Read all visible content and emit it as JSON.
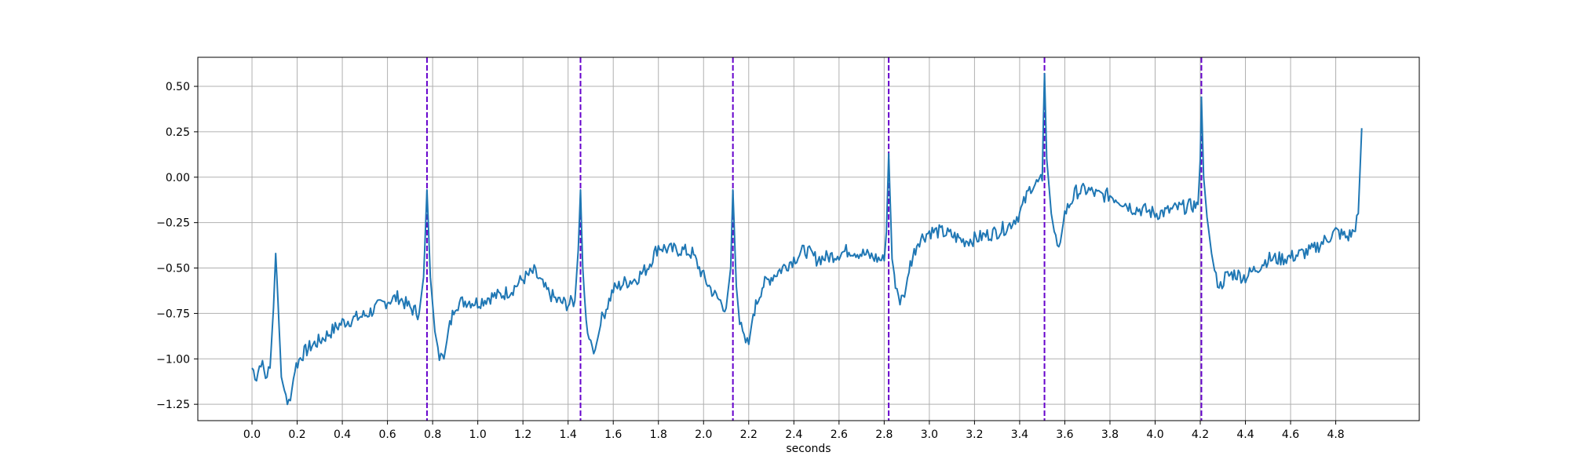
{
  "chart_data": {
    "type": "line",
    "title": "",
    "xlabel": "seconds",
    "ylabel": "",
    "xlim": [
      -0.24,
      5.17
    ],
    "ylim": [
      -1.34,
      0.66
    ],
    "xticks": [
      0.0,
      0.2,
      0.4,
      0.6,
      0.8,
      1.0,
      1.2,
      1.4,
      1.6,
      1.8,
      2.0,
      2.2,
      2.4,
      2.6,
      2.8,
      3.0,
      3.2,
      3.4,
      3.6,
      3.8,
      4.0,
      4.2,
      4.4,
      4.6,
      4.8
    ],
    "xtick_labels": [
      "0.0",
      "0.2",
      "0.4",
      "0.6",
      "0.8",
      "1.0",
      "1.2",
      "1.4",
      "1.6",
      "1.8",
      "2.0",
      "2.2",
      "2.4",
      "2.6",
      "2.8",
      "3.0",
      "3.2",
      "3.4",
      "3.6",
      "3.8",
      "4.0",
      "4.2",
      "4.4",
      "4.6",
      "4.8"
    ],
    "yticks": [
      -1.25,
      -1.0,
      -0.75,
      -0.5,
      -0.25,
      0.0,
      0.25,
      0.5
    ],
    "ytick_labels": [
      "−1.25",
      "−1.00",
      "−0.75",
      "−0.50",
      "−0.25",
      "0.00",
      "0.25",
      "0.50"
    ],
    "grid": true,
    "signal": {
      "color": "#1f77b4",
      "anchors": [
        [
          0.0,
          -1.05
        ],
        [
          0.02,
          -1.1
        ],
        [
          0.04,
          -1.01
        ],
        [
          0.06,
          -1.1
        ],
        [
          0.08,
          -1.05
        ],
        [
          0.095,
          -0.72
        ],
        [
          0.105,
          -0.42
        ],
        [
          0.115,
          -0.68
        ],
        [
          0.13,
          -1.1
        ],
        [
          0.15,
          -1.21
        ],
        [
          0.17,
          -1.23
        ],
        [
          0.19,
          -1.05
        ],
        [
          0.22,
          -0.98
        ],
        [
          0.26,
          -0.93
        ],
        [
          0.3,
          -0.9
        ],
        [
          0.35,
          -0.85
        ],
        [
          0.4,
          -0.8
        ],
        [
          0.45,
          -0.78
        ],
        [
          0.5,
          -0.76
        ],
        [
          0.55,
          -0.72
        ],
        [
          0.6,
          -0.68
        ],
        [
          0.65,
          -0.66
        ],
        [
          0.7,
          -0.72
        ],
        [
          0.74,
          -0.75
        ],
        [
          0.76,
          -0.55
        ],
        [
          0.775,
          -0.07
        ],
        [
          0.79,
          -0.55
        ],
        [
          0.81,
          -0.85
        ],
        [
          0.83,
          -0.98
        ],
        [
          0.85,
          -1.0
        ],
        [
          0.87,
          -0.85
        ],
        [
          0.9,
          -0.7
        ],
        [
          0.95,
          -0.68
        ],
        [
          1.0,
          -0.69
        ],
        [
          1.05,
          -0.66
        ],
        [
          1.1,
          -0.65
        ],
        [
          1.15,
          -0.62
        ],
        [
          1.2,
          -0.56
        ],
        [
          1.25,
          -0.52
        ],
        [
          1.3,
          -0.62
        ],
        [
          1.35,
          -0.68
        ],
        [
          1.4,
          -0.7
        ],
        [
          1.43,
          -0.68
        ],
        [
          1.445,
          -0.4
        ],
        [
          1.455,
          -0.07
        ],
        [
          1.465,
          -0.5
        ],
        [
          1.48,
          -0.8
        ],
        [
          1.5,
          -0.9
        ],
        [
          1.52,
          -0.95
        ],
        [
          1.55,
          -0.78
        ],
        [
          1.6,
          -0.62
        ],
        [
          1.65,
          -0.58
        ],
        [
          1.7,
          -0.56
        ],
        [
          1.75,
          -0.5
        ],
        [
          1.8,
          -0.38
        ],
        [
          1.85,
          -0.4
        ],
        [
          1.9,
          -0.4
        ],
        [
          1.95,
          -0.42
        ],
        [
          2.0,
          -0.55
        ],
        [
          2.05,
          -0.65
        ],
        [
          2.1,
          -0.72
        ],
        [
          2.12,
          -0.5
        ],
        [
          2.13,
          -0.07
        ],
        [
          2.145,
          -0.6
        ],
        [
          2.16,
          -0.8
        ],
        [
          2.18,
          -0.9
        ],
        [
          2.2,
          -0.92
        ],
        [
          2.22,
          -0.75
        ],
        [
          2.26,
          -0.6
        ],
        [
          2.3,
          -0.55
        ],
        [
          2.35,
          -0.5
        ],
        [
          2.4,
          -0.45
        ],
        [
          2.45,
          -0.4
        ],
        [
          2.5,
          -0.45
        ],
        [
          2.55,
          -0.44
        ],
        [
          2.6,
          -0.42
        ],
        [
          2.65,
          -0.4
        ],
        [
          2.7,
          -0.42
        ],
        [
          2.75,
          -0.44
        ],
        [
          2.8,
          -0.46
        ],
        [
          2.81,
          -0.3
        ],
        [
          2.82,
          0.13
        ],
        [
          2.835,
          -0.45
        ],
        [
          2.85,
          -0.58
        ],
        [
          2.87,
          -0.68
        ],
        [
          2.89,
          -0.66
        ],
        [
          2.91,
          -0.5
        ],
        [
          2.95,
          -0.35
        ],
        [
          3.0,
          -0.3
        ],
        [
          3.05,
          -0.3
        ],
        [
          3.1,
          -0.32
        ],
        [
          3.15,
          -0.35
        ],
        [
          3.2,
          -0.34
        ],
        [
          3.25,
          -0.32
        ],
        [
          3.3,
          -0.3
        ],
        [
          3.35,
          -0.27
        ],
        [
          3.4,
          -0.2
        ],
        [
          3.45,
          -0.05
        ],
        [
          3.5,
          -0.02
        ],
        [
          3.505,
          0.3
        ],
        [
          3.51,
          0.57
        ],
        [
          3.52,
          0.1
        ],
        [
          3.54,
          -0.2
        ],
        [
          3.56,
          -0.35
        ],
        [
          3.58,
          -0.36
        ],
        [
          3.6,
          -0.2
        ],
        [
          3.65,
          -0.08
        ],
        [
          3.7,
          -0.07
        ],
        [
          3.75,
          -0.1
        ],
        [
          3.8,
          -0.1
        ],
        [
          3.85,
          -0.13
        ],
        [
          3.9,
          -0.17
        ],
        [
          3.95,
          -0.18
        ],
        [
          4.0,
          -0.2
        ],
        [
          4.05,
          -0.19
        ],
        [
          4.1,
          -0.17
        ],
        [
          4.15,
          -0.16
        ],
        [
          4.19,
          -0.15
        ],
        [
          4.2,
          0.1
        ],
        [
          4.205,
          0.44
        ],
        [
          4.215,
          0.0
        ],
        [
          4.23,
          -0.22
        ],
        [
          4.25,
          -0.42
        ],
        [
          4.27,
          -0.56
        ],
        [
          4.29,
          -0.6
        ],
        [
          4.31,
          -0.55
        ],
        [
          4.35,
          -0.53
        ],
        [
          4.4,
          -0.55
        ],
        [
          4.45,
          -0.5
        ],
        [
          4.5,
          -0.45
        ],
        [
          4.55,
          -0.45
        ],
        [
          4.6,
          -0.44
        ],
        [
          4.65,
          -0.42
        ],
        [
          4.7,
          -0.4
        ],
        [
          4.75,
          -0.35
        ],
        [
          4.8,
          -0.3
        ],
        [
          4.85,
          -0.33
        ],
        [
          4.88,
          -0.3
        ],
        [
          4.9,
          -0.2
        ],
        [
          4.915,
          0.27
        ]
      ],
      "noise_amplitude": 0.04
    },
    "markers": {
      "color": "#6600cc",
      "style": "dashed",
      "x": [
        0.775,
        1.455,
        2.13,
        2.82,
        3.51,
        4.205
      ]
    }
  }
}
